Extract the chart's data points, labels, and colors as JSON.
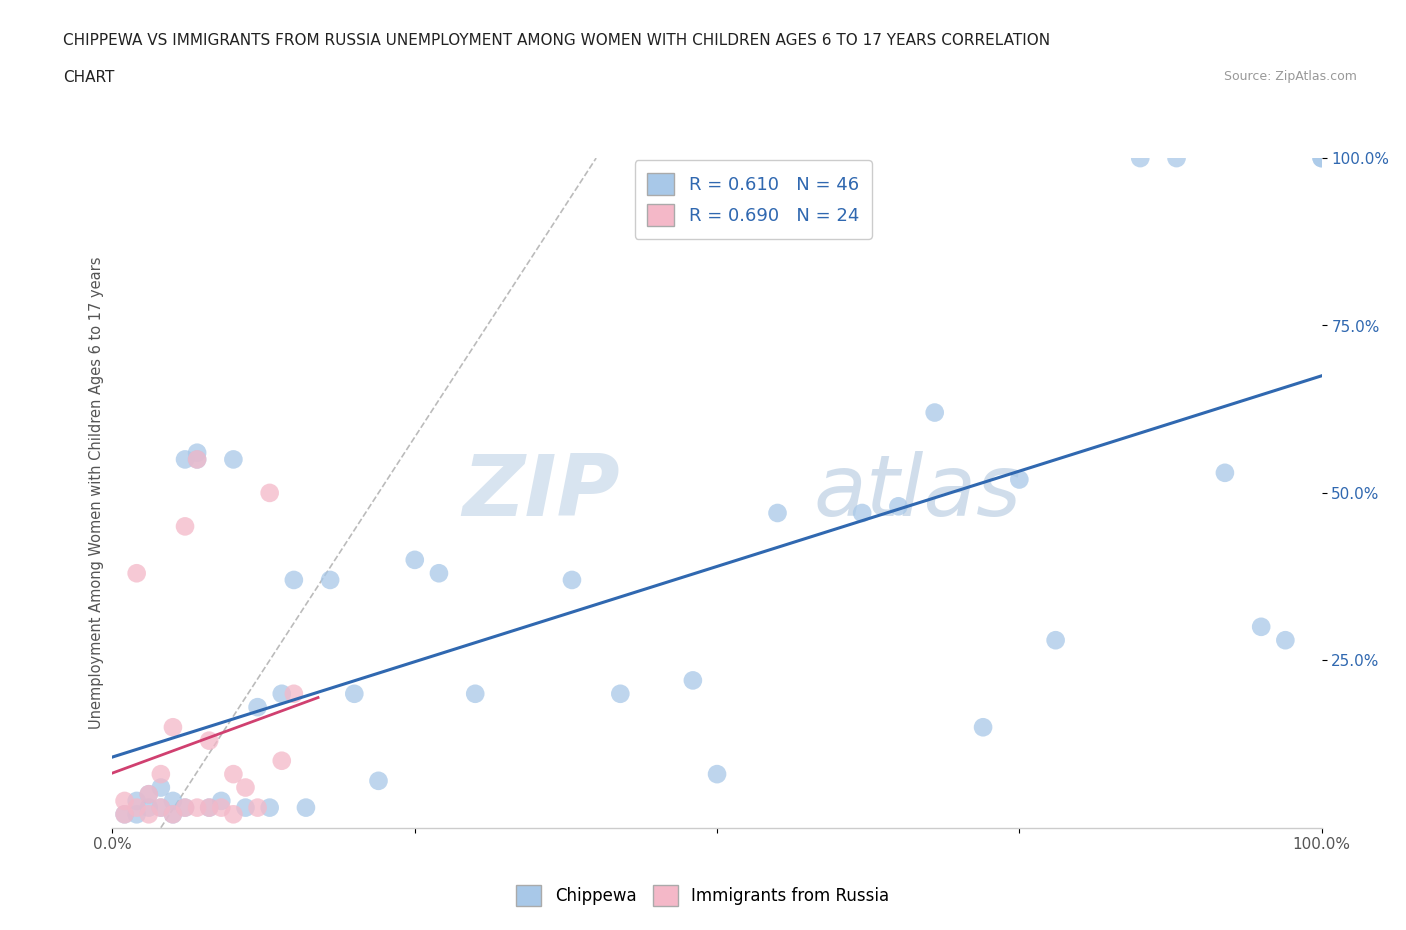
{
  "title_line1": "CHIPPEWA VS IMMIGRANTS FROM RUSSIA UNEMPLOYMENT AMONG WOMEN WITH CHILDREN AGES 6 TO 17 YEARS CORRELATION",
  "title_line2": "CHART",
  "source": "Source: ZipAtlas.com",
  "ylabel": "Unemployment Among Women with Children Ages 6 to 17 years",
  "xlim": [
    0.0,
    1.0
  ],
  "ylim": [
    0.0,
    1.0
  ],
  "xtick_positions": [
    0.0,
    0.25,
    0.5,
    0.75,
    1.0
  ],
  "xticklabels": [
    "0.0%",
    "",
    "",
    "",
    "100.0%"
  ],
  "ytick_right": [
    0.25,
    0.5,
    0.75,
    1.0
  ],
  "yticklabels_right": [
    "25.0%",
    "50.0%",
    "75.0%",
    "100.0%"
  ],
  "blue_color": "#a8c8e8",
  "pink_color": "#f4b8c8",
  "blue_line_color": "#3068b0",
  "pink_line_color": "#d04070",
  "R_blue": 0.61,
  "N_blue": 46,
  "R_pink": 0.69,
  "N_pink": 24,
  "legend_label_blue": "Chippewa",
  "legend_label_pink": "Immigrants from Russia",
  "watermark_zip": "ZIP",
  "watermark_atlas": "atlas",
  "blue_scatter_x": [
    0.01,
    0.02,
    0.02,
    0.03,
    0.03,
    0.04,
    0.04,
    0.05,
    0.05,
    0.06,
    0.06,
    0.07,
    0.07,
    0.08,
    0.09,
    0.1,
    0.11,
    0.12,
    0.13,
    0.14,
    0.15,
    0.16,
    0.18,
    0.2,
    0.22,
    0.25,
    0.27,
    0.3,
    0.38,
    0.42,
    0.48,
    0.5,
    0.55,
    0.62,
    0.65,
    0.68,
    0.72,
    0.75,
    0.78,
    0.85,
    0.88,
    0.92,
    0.95,
    0.97,
    1.0,
    1.0
  ],
  "blue_scatter_y": [
    0.02,
    0.02,
    0.04,
    0.03,
    0.05,
    0.03,
    0.06,
    0.02,
    0.04,
    0.03,
    0.55,
    0.55,
    0.56,
    0.03,
    0.04,
    0.55,
    0.03,
    0.18,
    0.03,
    0.2,
    0.37,
    0.03,
    0.37,
    0.2,
    0.07,
    0.4,
    0.38,
    0.2,
    0.37,
    0.2,
    0.22,
    0.08,
    0.47,
    0.47,
    0.48,
    0.62,
    0.15,
    0.52,
    0.28,
    1.0,
    1.0,
    0.53,
    0.3,
    0.28,
    1.0,
    1.0
  ],
  "pink_scatter_x": [
    0.01,
    0.01,
    0.02,
    0.02,
    0.03,
    0.03,
    0.04,
    0.04,
    0.05,
    0.05,
    0.06,
    0.06,
    0.07,
    0.07,
    0.08,
    0.08,
    0.09,
    0.1,
    0.1,
    0.11,
    0.12,
    0.13,
    0.14,
    0.15
  ],
  "pink_scatter_y": [
    0.02,
    0.04,
    0.03,
    0.38,
    0.02,
    0.05,
    0.03,
    0.08,
    0.02,
    0.15,
    0.03,
    0.45,
    0.03,
    0.55,
    0.03,
    0.13,
    0.03,
    0.08,
    0.02,
    0.06,
    0.03,
    0.5,
    0.1,
    0.2
  ],
  "diag_line_color": "#bbbbbb",
  "grid_color": "#cccccc",
  "background_color": "#ffffff"
}
